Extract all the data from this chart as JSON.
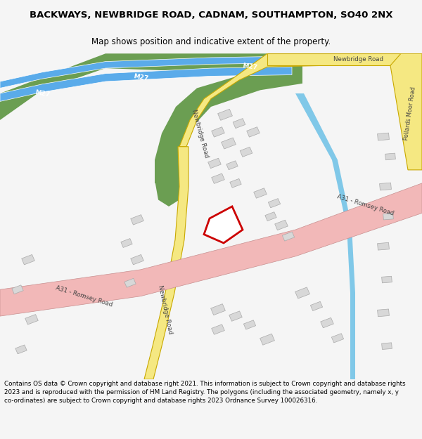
{
  "title": "BACKWAYS, NEWBRIDGE ROAD, CADNAM, SOUTHAMPTON, SO40 2NX",
  "subtitle": "Map shows position and indicative extent of the property.",
  "footer": "Contains OS data © Crown copyright and database right 2021. This information is subject to Crown copyright and database rights 2023 and is reproduced with the permission of HM Land Registry. The polygons (including the associated geometry, namely x, y co-ordinates) are subject to Crown copyright and database rights 2023 Ordnance Survey 100026316.",
  "bg_color": "#f5f5f5",
  "map_bg": "#ffffff",
  "m27_blue": "#5aabea",
  "m27_green": "#6b9e52",
  "nb_road_fill": "#f5e882",
  "nb_road_border": "#c8a800",
  "a31_fill": "#f2b8b8",
  "a31_border": "#c89090",
  "poll_fill": "#f5e882",
  "poll_border": "#c8a800",
  "stream_color": "#80c8e8",
  "building_fill": "#d8d8d8",
  "building_border": "#aaaaaa",
  "plot_fill": "#ffffff",
  "plot_border": "#cc0000",
  "plot_lw": 2.0,
  "text_dark": "#333333",
  "text_road": "#444444"
}
